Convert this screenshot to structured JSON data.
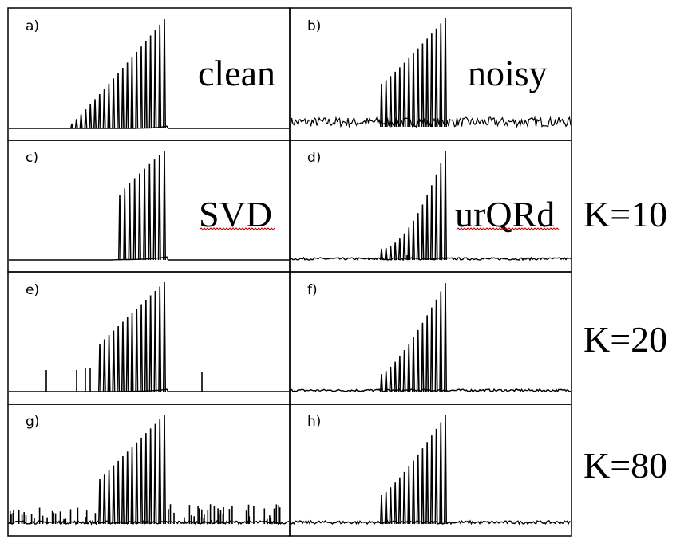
{
  "figure": {
    "panels": [
      {
        "letter": "a)",
        "title": "clean",
        "kind": "clean"
      },
      {
        "letter": "b)",
        "title": "noisy",
        "kind": "noisy"
      },
      {
        "letter": "c)",
        "title": "SVD",
        "kind": "svd10"
      },
      {
        "letter": "d)",
        "title": "urQRd",
        "kind": "urqrd10"
      },
      {
        "letter": "e)",
        "title": "",
        "kind": "svd20"
      },
      {
        "letter": "f)",
        "title": "",
        "kind": "urqrd20"
      },
      {
        "letter": "g)",
        "title": "",
        "kind": "svd80"
      },
      {
        "letter": "h)",
        "title": "",
        "kind": "urqrd80"
      }
    ],
    "row_labels": [
      "",
      "K=10",
      "K=20",
      "K=80"
    ],
    "colors": {
      "line": "#000000",
      "grid": "#000000",
      "squiggle": "#cc0000"
    }
  }
}
